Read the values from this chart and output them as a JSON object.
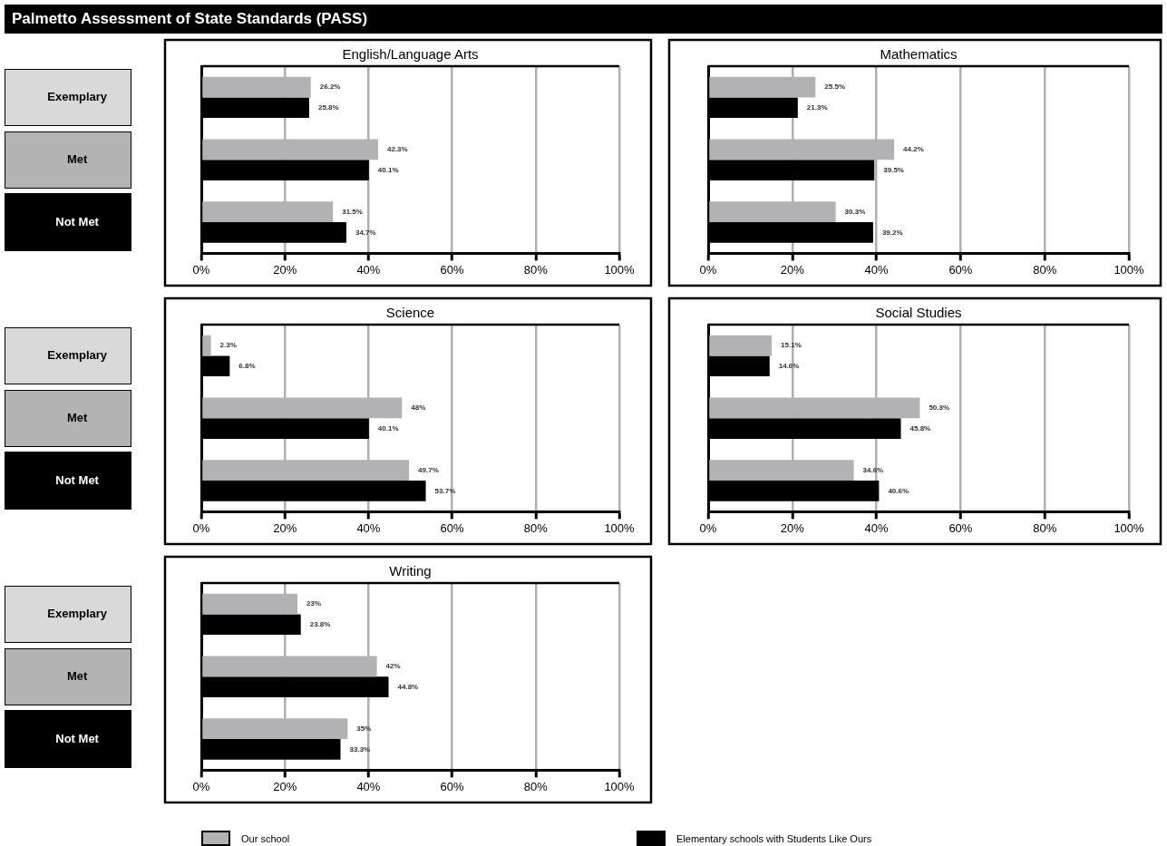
{
  "chart_data": [
    {
      "type": "bar",
      "orientation": "horizontal",
      "title": "English/Language Arts",
      "annotations": [
        "Palmetto Assessment of State Standards (PASS)"
      ],
      "legend": "bottom",
      "grid": "x",
      "categories": [
        "Exemplary",
        "Met",
        "Not Met"
      ],
      "xlim": [
        0,
        100
      ],
      "xticks": [
        {
          "value": 0,
          "label": "0%"
        },
        {
          "value": 20,
          "label": "20%"
        },
        {
          "value": 40,
          "label": "40%"
        },
        {
          "value": 60,
          "label": "60%"
        },
        {
          "value": 80,
          "label": "80%"
        },
        {
          "value": 100,
          "label": "100%"
        }
      ],
      "series": [
        {
          "name": "Our school",
          "color": "#b2b2b4",
          "values": [
            26.2,
            42.3,
            31.5
          ],
          "value_labels": [
            "26.2%",
            "42.3%",
            "31.5%"
          ]
        },
        {
          "name": "Elementary schools with Students Like Ours",
          "color": "#000000",
          "values": [
            25.8,
            40.1,
            34.7
          ],
          "value_labels": [
            "25.8%",
            "40.1%",
            "34.7%"
          ]
        }
      ]
    },
    {
      "type": "bar",
      "orientation": "horizontal",
      "title": "Mathematics",
      "grid": "x",
      "categories": [
        null,
        null,
        null
      ],
      "xlim": [
        0,
        100
      ],
      "xticks": [
        {
          "value": 0,
          "label": "0%"
        },
        {
          "value": 20,
          "label": "20%"
        },
        {
          "value": 40,
          "label": "40%"
        },
        {
          "value": 60,
          "label": "60%"
        },
        {
          "value": 80,
          "label": "80%"
        },
        {
          "value": 100,
          "label": "100%"
        }
      ],
      "series": [
        {
          "color": "#b2b2b4",
          "values": [
            25.5,
            44.2,
            30.3
          ],
          "value_labels": [
            "25.5%",
            "44.2%",
            "30.3%"
          ]
        },
        {
          "color": "#000000",
          "values": [
            21.3,
            39.5,
            39.2
          ],
          "value_labels": [
            "21.3%",
            "39.5%",
            "39.2%"
          ]
        }
      ]
    },
    {
      "type": "bar",
      "orientation": "horizontal",
      "title": "Science",
      "grid": "x",
      "categories": [
        "Exemplary",
        "Met",
        "Not Met"
      ],
      "xlim": [
        0,
        100
      ],
      "xticks": [
        {
          "value": 0,
          "label": "0%"
        },
        {
          "value": 20,
          "label": "20%"
        },
        {
          "value": 40,
          "label": "40%"
        },
        {
          "value": 60,
          "label": "60%"
        },
        {
          "value": 80,
          "label": "80%"
        },
        {
          "value": 100,
          "label": "100%"
        }
      ],
      "series": [
        {
          "color": "#b2b2b4",
          "values": [
            2.3,
            48,
            49.7
          ],
          "value_labels": [
            "2.3%",
            "48%",
            "49.7%"
          ]
        },
        {
          "color": "#000000",
          "values": [
            6.8,
            40.1,
            53.7
          ],
          "value_labels": [
            "6.8%",
            "40.1%",
            "53.7%"
          ]
        }
      ]
    },
    {
      "type": "bar",
      "orientation": "horizontal",
      "title": "Social Studies",
      "grid": "x",
      "categories": [
        null,
        null,
        null
      ],
      "xlim": [
        0,
        100
      ],
      "xticks": [
        {
          "value": 0,
          "label": "0%"
        },
        {
          "value": 20,
          "label": "20%"
        },
        {
          "value": 40,
          "label": "40%"
        },
        {
          "value": 60,
          "label": "60%"
        },
        {
          "value": 80,
          "label": "80%"
        },
        {
          "value": 100,
          "label": "100%"
        }
      ],
      "series": [
        {
          "color": "#b2b2b4",
          "values": [
            15.1,
            50.3,
            34.6
          ],
          "value_labels": [
            "15.1%",
            "50.3%",
            "34.6%"
          ]
        },
        {
          "color": "#000000",
          "values": [
            14.6,
            45.8,
            40.6
          ],
          "value_labels": [
            "14.6%",
            "45.8%",
            "40.6%"
          ]
        }
      ]
    },
    {
      "type": "bar",
      "orientation": "horizontal",
      "title": "Writing",
      "grid": "x",
      "categories": [
        "Exemplary",
        "Met",
        "Not Met"
      ],
      "xlim": [
        0,
        100
      ],
      "xticks": [
        {
          "value": 0,
          "label": "0%"
        },
        {
          "value": 20,
          "label": "20%"
        },
        {
          "value": 40,
          "label": "40%"
        },
        {
          "value": 60,
          "label": "60%"
        },
        {
          "value": 80,
          "label": "80%"
        },
        {
          "value": 100,
          "label": "100%"
        }
      ],
      "series": [
        {
          "color": "#b2b2b4",
          "values": [
            23,
            42,
            35
          ],
          "value_labels": [
            "23%",
            "42%",
            "35%"
          ]
        },
        {
          "color": "#000000",
          "values": [
            23.8,
            44.8,
            33.3
          ],
          "value_labels": [
            "23.8%",
            "44.8%",
            "33.3%"
          ]
        }
      ]
    }
  ]
}
